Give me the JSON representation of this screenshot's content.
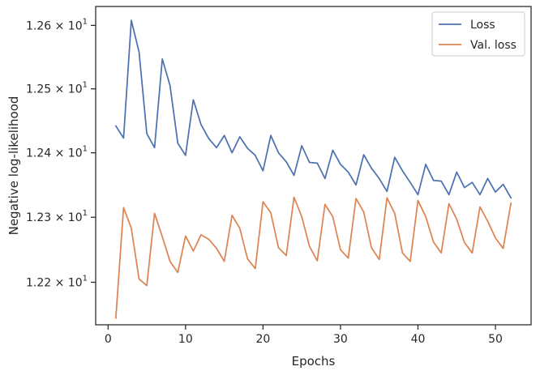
{
  "chart_data": {
    "type": "line",
    "title": "",
    "xlabel": "Epochs",
    "ylabel": "Negative log-likelihood",
    "y_scale": "log",
    "xlim": [
      -1.6,
      54.6
    ],
    "ylim": [
      12.135,
      12.63
    ],
    "x_ticks": [
      0,
      10,
      20,
      30,
      40,
      50
    ],
    "y_ticks": [
      {
        "value": 12.2,
        "mantissa": "1.22",
        "base": "10",
        "exp": "1"
      },
      {
        "value": 12.3,
        "mantissa": "1.23",
        "base": "10",
        "exp": "1"
      },
      {
        "value": 12.4,
        "mantissa": "1.24",
        "base": "10",
        "exp": "1"
      },
      {
        "value": 12.5,
        "mantissa": "1.25",
        "base": "10",
        "exp": "1"
      },
      {
        "value": 12.6,
        "mantissa": "1.26",
        "base": "10",
        "exp": "1"
      }
    ],
    "grid": false,
    "legend_position": "top-right",
    "x": [
      1,
      2,
      3,
      4,
      5,
      6,
      7,
      8,
      9,
      10,
      11,
      12,
      13,
      14,
      15,
      16,
      17,
      18,
      19,
      20,
      21,
      22,
      23,
      24,
      25,
      26,
      27,
      28,
      29,
      30,
      31,
      32,
      33,
      34,
      35,
      36,
      37,
      38,
      39,
      40,
      41,
      42,
      43,
      44,
      45,
      46,
      47,
      48,
      49,
      50,
      51,
      52
    ],
    "series": [
      {
        "name": "Loss",
        "color": "#4c72b0",
        "values": [
          12.442,
          12.423,
          12.608,
          12.558,
          12.43,
          12.408,
          12.547,
          12.505,
          12.415,
          12.396,
          12.483,
          12.444,
          12.422,
          12.408,
          12.427,
          12.4,
          12.425,
          12.407,
          12.396,
          12.372,
          12.427,
          12.4,
          12.386,
          12.365,
          12.411,
          12.385,
          12.384,
          12.36,
          12.404,
          12.382,
          12.37,
          12.35,
          12.397,
          12.376,
          12.36,
          12.34,
          12.393,
          12.372,
          12.354,
          12.335,
          12.382,
          12.357,
          12.356,
          12.335,
          12.37,
          12.346,
          12.354,
          12.335,
          12.36,
          12.339,
          12.351,
          12.33
        ]
      },
      {
        "name": "Val. loss",
        "color": "#dd8452",
        "values": [
          12.145,
          12.315,
          12.283,
          12.205,
          12.195,
          12.306,
          12.27,
          12.232,
          12.215,
          12.271,
          12.248,
          12.273,
          12.266,
          12.252,
          12.232,
          12.303,
          12.283,
          12.236,
          12.221,
          12.324,
          12.307,
          12.253,
          12.241,
          12.331,
          12.301,
          12.255,
          12.233,
          12.32,
          12.301,
          12.25,
          12.237,
          12.329,
          12.308,
          12.253,
          12.235,
          12.33,
          12.306,
          12.245,
          12.232,
          12.326,
          12.301,
          12.262,
          12.245,
          12.321,
          12.297,
          12.261,
          12.245,
          12.316,
          12.294,
          12.268,
          12.252,
          12.322
        ]
      }
    ]
  }
}
